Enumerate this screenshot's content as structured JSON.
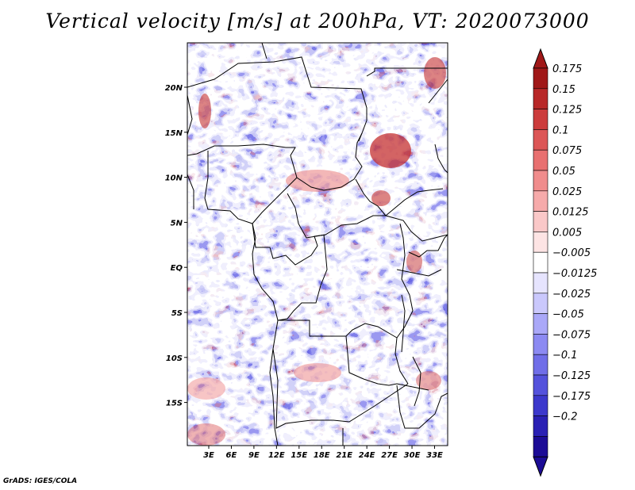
{
  "title": "Vertical velocity [m/s] at 200hPa, VT: 2020073000",
  "credit": "GrADS: IGES/COLA",
  "map": {
    "lon_ticks": [
      "3E",
      "6E",
      "9E",
      "12E",
      "15E",
      "18E",
      "21E",
      "24E",
      "27E",
      "30E",
      "33E"
    ],
    "lat_ticks": [
      "20N",
      "15N",
      "10N",
      "5N",
      "EQ",
      "5S",
      "10S",
      "15S"
    ],
    "lon_range": [
      0,
      35
    ],
    "lat_range": [
      -20,
      25
    ],
    "variable": "vertical velocity",
    "units": "m/s",
    "level": "200hPa",
    "valid_time": "2020073000"
  },
  "colorbar": {
    "labels": [
      "0.175",
      "0.15",
      "0.125",
      "0.1",
      "0.075",
      "0.05",
      "0.025",
      "0.0125",
      "0.005",
      "−0.005",
      "−0.0125",
      "−0.025",
      "−0.05",
      "−0.075",
      "−0.1",
      "−0.125",
      "−0.175",
      "−0.2"
    ],
    "colors": [
      "#a01818",
      "#b82828",
      "#cc3c3c",
      "#dc5656",
      "#e87070",
      "#f08c8c",
      "#f6aaaa",
      "#fac8c8",
      "#fde4e4",
      "#ffffff",
      "#e6e4fe",
      "#cac8fc",
      "#aaa8f8",
      "#8c8af2",
      "#706ee8",
      "#5452dc",
      "#3c38cc",
      "#2a20b4",
      "#1c0c96"
    ],
    "arrow_top_color": "#a01818",
    "arrow_bottom_color": "#1c0c96"
  }
}
